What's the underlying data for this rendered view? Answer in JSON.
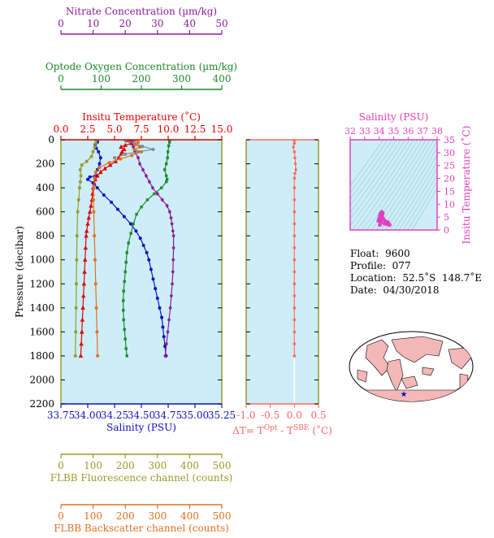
{
  "chart_data": {
    "type": "line",
    "main": {
      "ylabel": "Pressure (decibar)",
      "ylim": [
        2200,
        0
      ],
      "yticks": [
        "0",
        "200",
        "400",
        "600",
        "800",
        "1000",
        "1200",
        "1400",
        "1600",
        "1800",
        "2000",
        "2200"
      ],
      "grid": false,
      "axes": {
        "nitrate": {
          "label": "Nitrate Concentration (µm/kg)",
          "range": [
            0,
            50
          ],
          "ticks": [
            "0",
            "10",
            "20",
            "30",
            "40",
            "50"
          ],
          "color": "#8c1a96"
        },
        "oxygen": {
          "label": "Optode Oxygen Concentration (µm/kg)",
          "range": [
            0,
            400
          ],
          "ticks": [
            "0",
            "100",
            "200",
            "300",
            "400"
          ],
          "color": "#1a8a2a"
        },
        "temperature": {
          "label": "Insitu Temperature (˚C)",
          "range": [
            0,
            15
          ],
          "ticks": [
            "0.0",
            "2.5",
            "5.0",
            "7.5",
            "10.0",
            "12.5",
            "15.0"
          ],
          "color": "#e00000"
        },
        "salinity": {
          "label": "Salinity (PSU)",
          "range": [
            33.75,
            35.25
          ],
          "ticks": [
            "33.75",
            "34.00",
            "34.25",
            "34.50",
            "34.75",
            "35.00",
            "35.25"
          ],
          "color": "#1010c0"
        },
        "fluorescence": {
          "label": "FLBB Fluorescence channel (counts)",
          "range": [
            0,
            500
          ],
          "ticks": [
            "0",
            "100",
            "200",
            "300",
            "400",
            "500"
          ],
          "color": "#9a9a2a"
        },
        "backscatter": {
          "label": "FLBB Backscatter channel (counts)",
          "range": [
            0,
            500
          ],
          "ticks": [
            "0",
            "100",
            "200",
            "300",
            "400",
            "500"
          ],
          "color": "#e07020"
        }
      },
      "series": [
        {
          "axis": "temperature",
          "marker": "triangle",
          "color": "#e00000",
          "points": [
            [
              6.2,
              5
            ],
            [
              6.5,
              10
            ],
            [
              6.8,
              20
            ],
            [
              6.6,
              30
            ],
            [
              6.0,
              45
            ],
            [
              5.6,
              60
            ],
            [
              5.9,
              80
            ],
            [
              5.7,
              100
            ],
            [
              5.6,
              120
            ],
            [
              5.4,
              150
            ],
            [
              5.1,
              180
            ],
            [
              4.6,
              210
            ],
            [
              4.1,
              240
            ],
            [
              3.7,
              270
            ],
            [
              3.4,
              300
            ],
            [
              3.2,
              330
            ],
            [
              3.1,
              360
            ],
            [
              3.0,
              400
            ],
            [
              2.95,
              450
            ],
            [
              2.9,
              500
            ],
            [
              2.8,
              550
            ],
            [
              2.7,
              600
            ],
            [
              2.6,
              650
            ],
            [
              2.5,
              700
            ],
            [
              2.4,
              760
            ],
            [
              2.35,
              800
            ],
            [
              2.3,
              900
            ],
            [
              2.25,
              1000
            ],
            [
              2.2,
              1100
            ],
            [
              2.15,
              1200
            ],
            [
              2.1,
              1300
            ],
            [
              2.05,
              1400
            ],
            [
              2.0,
              1500
            ],
            [
              1.95,
              1600
            ],
            [
              1.9,
              1700
            ],
            [
              1.85,
              1800
            ]
          ]
        },
        {
          "axis": "salinity",
          "marker": "circle",
          "color": "#1010c0",
          "points": [
            [
              34.09,
              5
            ],
            [
              34.09,
              20
            ],
            [
              34.07,
              40
            ],
            [
              34.08,
              70
            ],
            [
              34.1,
              100
            ],
            [
              34.12,
              150
            ],
            [
              34.11,
              200
            ],
            [
              34.09,
              250
            ],
            [
              34.07,
              300
            ],
            [
              34.02,
              310
            ],
            [
              34.0,
              330
            ],
            [
              34.05,
              360
            ],
            [
              34.09,
              400
            ],
            [
              34.15,
              460
            ],
            [
              34.22,
              520
            ],
            [
              34.28,
              580
            ],
            [
              34.34,
              640
            ],
            [
              34.4,
              700
            ],
            [
              34.45,
              760
            ],
            [
              34.49,
              820
            ],
            [
              34.52,
              880
            ],
            [
              34.55,
              940
            ],
            [
              34.57,
              1000
            ],
            [
              34.59,
              1080
            ],
            [
              34.61,
              1160
            ],
            [
              34.63,
              1240
            ],
            [
              34.65,
              1320
            ],
            [
              34.67,
              1400
            ],
            [
              34.69,
              1480
            ],
            [
              34.7,
              1560
            ],
            [
              34.71,
              1640
            ],
            [
              34.72,
              1720
            ],
            [
              34.73,
              1800
            ]
          ]
        },
        {
          "axis": "oxygen",
          "marker": "square",
          "color": "#1a8a2a",
          "points": [
            [
              270,
              5
            ],
            [
              270,
              20
            ],
            [
              268,
              50
            ],
            [
              266,
              100
            ],
            [
              265,
              150
            ],
            [
              262,
              200
            ],
            [
              258,
              250
            ],
            [
              262,
              300
            ],
            [
              264,
              330
            ],
            [
              262,
              350
            ],
            [
              250,
              400
            ],
            [
              232,
              450
            ],
            [
              215,
              500
            ],
            [
              200,
              560
            ],
            [
              188,
              620
            ],
            [
              180,
              700
            ],
            [
              174,
              780
            ],
            [
              168,
              860
            ],
            [
              164,
              940
            ],
            [
              162,
              1020
            ],
            [
              160,
              1100
            ],
            [
              158,
              1180
            ],
            [
              156,
              1260
            ],
            [
              155,
              1340
            ],
            [
              155,
              1420
            ],
            [
              156,
              1500
            ],
            [
              158,
              1580
            ],
            [
              160,
              1660
            ],
            [
              162,
              1740
            ],
            [
              164,
              1800
            ]
          ]
        },
        {
          "axis": "nitrate",
          "marker": "diamond",
          "color": "#8c1a96",
          "points": [
            [
              22,
              5
            ],
            [
              22,
              30
            ],
            [
              22.5,
              60
            ],
            [
              23,
              100
            ],
            [
              24,
              150
            ],
            [
              24.5,
              200
            ],
            [
              25.5,
              250
            ],
            [
              26.5,
              300
            ],
            [
              27.5,
              350
            ],
            [
              28.5,
              400
            ],
            [
              30,
              450
            ],
            [
              31.5,
              500
            ],
            [
              33,
              550
            ],
            [
              33.8,
              600
            ],
            [
              34.2,
              650
            ],
            [
              34.5,
              700
            ],
            [
              34.8,
              760
            ],
            [
              35,
              800
            ],
            [
              35,
              900
            ],
            [
              34.9,
              1000
            ],
            [
              34.8,
              1100
            ],
            [
              34.6,
              1200
            ],
            [
              34.3,
              1300
            ],
            [
              34,
              1400
            ],
            [
              33.6,
              1500
            ],
            [
              33.2,
              1600
            ],
            [
              32.8,
              1700
            ],
            [
              32.4,
              1800
            ]
          ]
        },
        {
          "axis": "fluorescence",
          "marker": "circle",
          "color": "#9a9a2a",
          "points": [
            [
              110,
              5
            ],
            [
              108,
              30
            ],
            [
              105,
              60
            ],
            [
              100,
              100
            ],
            [
              95,
              140
            ],
            [
              80,
              180
            ],
            [
              65,
              210
            ],
            [
              60,
              250
            ],
            [
              62,
              300
            ],
            [
              60,
              350
            ],
            [
              58,
              400
            ],
            [
              55,
              500
            ],
            [
              52,
              600
            ],
            [
              50,
              800
            ],
            [
              49,
              1000
            ],
            [
              48,
              1200
            ],
            [
              47,
              1400
            ],
            [
              46,
              1600
            ],
            [
              45,
              1800
            ]
          ]
        },
        {
          "axis": "backscatter",
          "marker": "circle",
          "color": "#e07020",
          "points": [
            [
              230,
              5
            ],
            [
              240,
              20
            ],
            [
              232,
              40
            ],
            [
              245,
              60
            ],
            [
              228,
              80
            ],
            [
              250,
              100
            ],
            [
              220,
              130
            ],
            [
              185,
              160
            ],
            [
              150,
              190
            ],
            [
              120,
              230
            ],
            [
              108,
              270
            ],
            [
              104,
              320
            ],
            [
              102,
              400
            ],
            [
              101,
              500
            ],
            [
              102,
              600
            ],
            [
              104,
              800
            ],
            [
              106,
              1000
            ],
            [
              108,
              1200
            ],
            [
              110,
              1400
            ],
            [
              112,
              1600
            ],
            [
              114,
              1800
            ]
          ]
        },
        {
          "axis": "temperature",
          "marker": "circle",
          "color": "#888888",
          "points": [
            [
              6.0,
              5
            ],
            [
              6.8,
              25
            ],
            [
              7.6,
              55
            ],
            [
              8.6,
              80
            ],
            [
              7.2,
              100
            ],
            [
              6.0,
              120
            ],
            [
              5.0,
              150
            ]
          ]
        }
      ]
    },
    "delta": {
      "xlabel_prefix": "ΔT= T",
      "xlabel_sup1": "Opt",
      "xlabel_mid": " - T",
      "xlabel_sup2": "SBE",
      "xlabel_suffix": " (˚C)",
      "range": [
        -1.0,
        0.5
      ],
      "ticks": [
        "-1.0",
        "-0.5",
        "0.0",
        "0.5"
      ],
      "color": "#ff6666",
      "points": [
        [
          0.0,
          5
        ],
        [
          0.0,
          30
        ],
        [
          -0.02,
          60
        ],
        [
          0.0,
          100
        ],
        [
          0.01,
          150
        ],
        [
          0.02,
          200
        ],
        [
          0.03,
          250
        ],
        [
          0.01,
          280
        ],
        [
          0.0,
          320
        ],
        [
          0.0,
          400
        ],
        [
          0.0,
          500
        ],
        [
          0.0,
          600
        ],
        [
          0.0,
          700
        ],
        [
          0.0,
          800
        ],
        [
          0.0,
          900
        ],
        [
          0.0,
          1000
        ],
        [
          0.0,
          1100
        ],
        [
          0.0,
          1200
        ],
        [
          0.0,
          1300
        ],
        [
          0.0,
          1400
        ],
        [
          0.0,
          1500
        ],
        [
          0.0,
          1600
        ],
        [
          0.0,
          1700
        ],
        [
          0.0,
          1800
        ]
      ]
    },
    "ts": {
      "xlabel": "Salinity (PSU)",
      "ylabel": "Insitu Temperature (˚C)",
      "xrange": [
        32,
        38
      ],
      "yrange": [
        0,
        35
      ],
      "xticks": [
        "32",
        "33",
        "34",
        "35",
        "36",
        "37",
        "38"
      ],
      "yticks": [
        "0",
        "5",
        "10",
        "15",
        "20",
        "25",
        "30",
        "35"
      ],
      "color": "#e040c0",
      "points": [
        [
          34.05,
          2.0
        ],
        [
          34.1,
          3.0
        ],
        [
          34.15,
          4.0
        ],
        [
          34.2,
          5.0
        ],
        [
          34.22,
          6.0
        ],
        [
          34.18,
          7.0
        ],
        [
          34.1,
          6.5
        ],
        [
          34.05,
          5.5
        ],
        [
          34.0,
          4.5
        ],
        [
          33.95,
          3.5
        ],
        [
          34.35,
          2.5
        ],
        [
          34.5,
          2.3
        ],
        [
          34.65,
          2.1
        ],
        [
          34.72,
          2.0
        ],
        [
          34.6,
          3.0
        ],
        [
          34.4,
          3.5
        ],
        [
          34.3,
          4.2
        ],
        [
          34.25,
          6.5
        ],
        [
          34.15,
          6.2
        ],
        [
          34.12,
          5.8
        ]
      ]
    }
  },
  "info": {
    "float_label": "Float:",
    "float_value": "9600",
    "profile_label": "Profile:",
    "profile_value": "077",
    "location_label": "Location:",
    "location_value": "52.5˚S  148.7˚E",
    "date_label": "Date:",
    "date_value": "04/30/2018"
  },
  "map": {
    "land_color": "#f4b8b8",
    "ocean_color": "#ffffff",
    "marker_color": "#1010c0"
  }
}
